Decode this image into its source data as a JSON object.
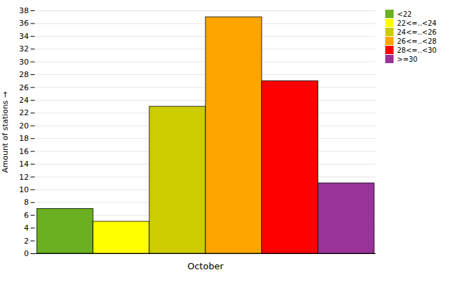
{
  "chart_data": {
    "type": "bar",
    "categories": [
      "<22",
      "22<=..<24",
      "24<=..<26",
      "26<=..<28",
      "28<=..<30",
      ">=30"
    ],
    "values": [
      7,
      5,
      23,
      37,
      27,
      11
    ],
    "colors": [
      "#6ab020",
      "#ffff00",
      "#cccc00",
      "#ffa500",
      "#ff0000",
      "#993399"
    ],
    "xlabel": "October",
    "ylabel": "Amount of stations",
    "ylim": [
      0,
      38
    ],
    "yticks": [
      0,
      2,
      4,
      6,
      8,
      10,
      12,
      14,
      16,
      18,
      20,
      22,
      24,
      26,
      28,
      30,
      32,
      34,
      36,
      38
    ],
    "grid": true,
    "legend": "right"
  }
}
